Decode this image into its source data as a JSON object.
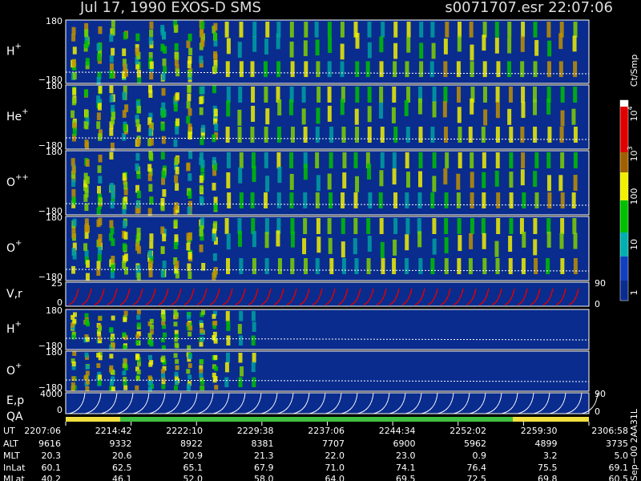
{
  "header": {
    "title": "Jul 17, 1990   EXOS-D SMS",
    "file": "s0071707.esr  22:07:06"
  },
  "panels": [
    {
      "label": "H",
      "sup": "+",
      "ticks": [
        "180",
        "−180"
      ]
    },
    {
      "label": "He",
      "sup": "+",
      "ticks": [
        "180",
        "−180"
      ]
    },
    {
      "label": "O",
      "sup": "++",
      "ticks": [
        "180",
        "−180"
      ]
    },
    {
      "label": "O",
      "sup": "+",
      "ticks": [
        "180",
        "−180"
      ]
    },
    {
      "label": "V,r",
      "ticks": [
        "25",
        "0"
      ],
      "right_ticks": [
        "90",
        "0"
      ]
    },
    {
      "label": "H",
      "sup": "+",
      "ticks": [
        "180",
        "−180"
      ]
    },
    {
      "label": "O",
      "sup": "+",
      "ticks": [
        "180",
        "−180"
      ]
    },
    {
      "label": "E,p",
      "ticks": [
        "4000",
        "0"
      ],
      "right_ticks": [
        "90",
        "0"
      ]
    }
  ],
  "qa_label": "QA",
  "colorbar": {
    "unit": "Ct/Smp",
    "labels": [
      {
        "base": "10",
        "exp": "4"
      },
      {
        "base": "10",
        "exp": "3"
      },
      {
        "base": "100"
      },
      {
        "base": "10"
      },
      {
        "base": "1"
      }
    ]
  },
  "table": {
    "row_labels": [
      "UT",
      "ALT",
      "MLT",
      "InLat",
      "MLat"
    ],
    "rows": [
      [
        "2207:06",
        "2214:42",
        "2222:10",
        "2229:38",
        "2237:06",
        "2244:34",
        "2252:02",
        "2259:30",
        "2306:58"
      ],
      [
        "9616",
        "9332",
        "8922",
        "8381",
        "7707",
        "6900",
        "5962",
        "4899",
        "3735"
      ],
      [
        "20.3",
        "20.6",
        "20.9",
        "21.3",
        "22.0",
        "23.0",
        "0.9",
        "3.2",
        "5.0"
      ],
      [
        "60.1",
        "62.5",
        "65.1",
        "67.9",
        "71.0",
        "74.1",
        "76.4",
        "75.5",
        "69.1"
      ],
      [
        "40.2",
        "46.1",
        "52.0",
        "58.0",
        "64.0",
        "69.5",
        "72.5",
        "69.8",
        "60.5"
      ]
    ]
  },
  "footer": "Sep−00 2AA31L"
}
